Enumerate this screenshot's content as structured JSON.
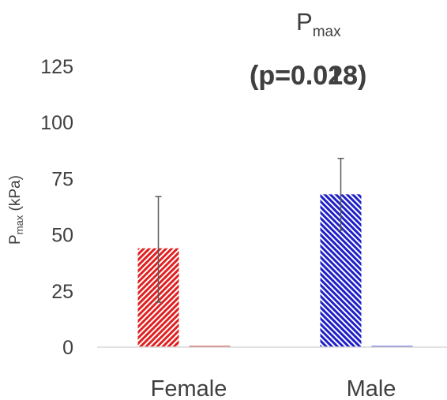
{
  "chart_data": {
    "type": "bar",
    "title": "P",
    "title_subscript": "max",
    "annotations": [
      "(p=0.028)",
      "(p=0.013)"
    ],
    "ylabel": "P",
    "ylabel_subscript": "max",
    "ylabel_unit": " (kPa)",
    "xlabel": "",
    "ylim": [
      0,
      125
    ],
    "yticks": [
      "0",
      "25",
      "50",
      "75",
      "100",
      "125"
    ],
    "ytick_values": [
      0,
      25,
      50,
      75,
      100,
      125
    ],
    "categories": [
      "Female",
      "Male"
    ],
    "grid": false,
    "legend": "none",
    "series": [
      {
        "color": "#e02020",
        "pattern": "diagonal-hatch",
        "values": [
          44,
          68
        ],
        "err_low": [
          20,
          52
        ],
        "err_high": [
          67,
          84
        ]
      },
      {
        "color": "#e02020",
        "pattern": "solid",
        "values": [
          0.5,
          0
        ]
      },
      {
        "color": "#1f1fc8",
        "pattern": "diagonal-hatch-blue",
        "values": [
          0,
          0
        ]
      },
      {
        "color": "#1f1fc8",
        "pattern": "solid",
        "values": [
          0,
          0.5
        ]
      }
    ],
    "bars": [
      {
        "category": "Female",
        "value": 44,
        "color": "#e02020",
        "err_low": 20,
        "err_high": 67
      },
      {
        "category": "Female",
        "value": 0.5,
        "color": "#c00000"
      },
      {
        "category": "Male",
        "value": 68,
        "color": "#1f1fc8",
        "err_low": 52,
        "err_high": 84
      },
      {
        "category": "Male",
        "value": 0.5,
        "color": "#1f1fc8"
      }
    ]
  }
}
